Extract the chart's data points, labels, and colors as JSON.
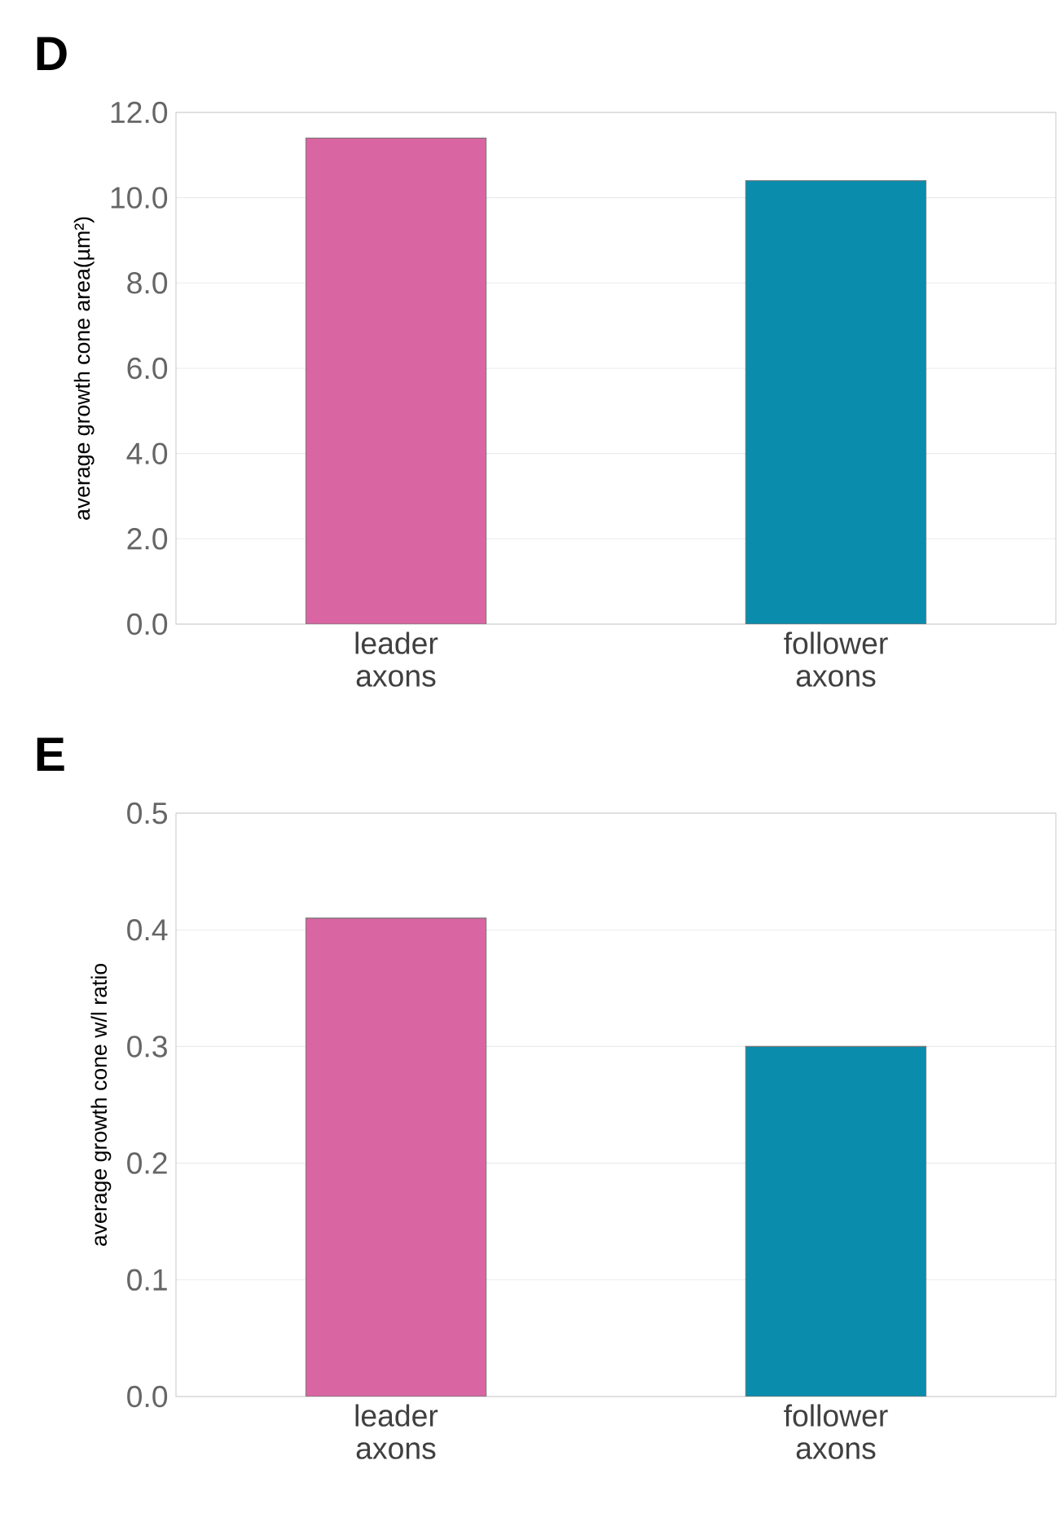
{
  "chart_data": [
    {
      "type": "bar",
      "title": "D",
      "ylabel": "average growth cone area(µm²)",
      "categories": [
        "leader axons",
        "follower axons"
      ],
      "values": [
        11.4,
        10.4
      ],
      "colors": [
        "#d966a3",
        "#0a8cad"
      ],
      "ylim": [
        0,
        12
      ],
      "yticks": [
        {
          "value": 0,
          "label": "0.0"
        },
        {
          "value": 2,
          "label": "2.0"
        },
        {
          "value": 4,
          "label": "4.0"
        },
        {
          "value": 6,
          "label": "6.0"
        },
        {
          "value": 8,
          "label": "8.0"
        },
        {
          "value": 10,
          "label": "10.0"
        },
        {
          "value": 12,
          "label": "12.0"
        }
      ],
      "grid": "y"
    },
    {
      "type": "bar",
      "title": "E",
      "ylabel": "average growth cone w/l ratio",
      "categories": [
        "leader axons",
        "follower axons"
      ],
      "values": [
        0.41,
        0.3
      ],
      "colors": [
        "#d966a3",
        "#0a8cad"
      ],
      "ylim": [
        0,
        0.5
      ],
      "yticks": [
        {
          "value": 0,
          "label": "0.0"
        },
        0.1,
        0.2,
        0.3,
        0.4,
        0.5
      ],
      "grid": "y"
    }
  ]
}
